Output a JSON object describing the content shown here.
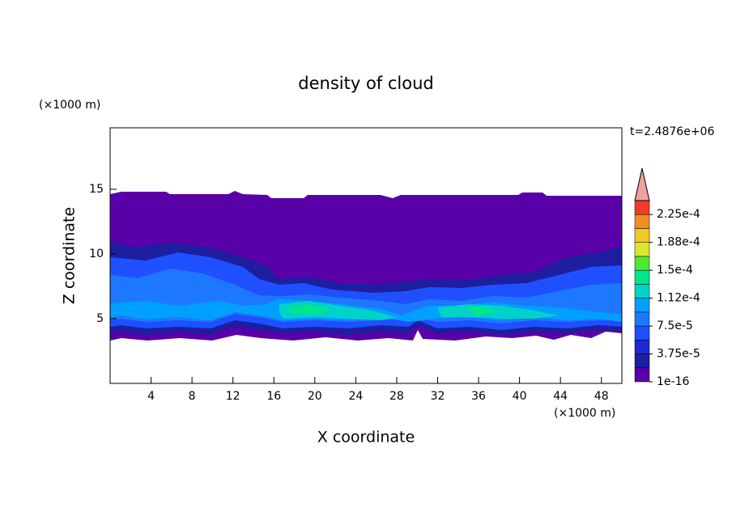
{
  "chart_data": {
    "type": "contour",
    "title": "density of cloud",
    "x_label": "X coordinate",
    "y_label": "Z coordinate",
    "x_unit": "(×1000 m)",
    "y_unit": "(×1000 m)",
    "time_label": "t=2.4876e+06",
    "xlim": [
      0,
      50
    ],
    "xticks": [
      4,
      8,
      12,
      16,
      20,
      24,
      28,
      32,
      36,
      40,
      44,
      48
    ],
    "ylim": [
      0,
      19.75
    ],
    "yticks": [
      5,
      10,
      15
    ],
    "colorbar": {
      "clim": [
        1e-16,
        0.00024375
      ],
      "colors": [
        "#5a00a8",
        "#1e1ea0",
        "#1e28d2",
        "#1e50ff",
        "#1e78ff",
        "#00a0ff",
        "#00d2c8",
        "#00e68c",
        "#50e632",
        "#dce632",
        "#f0c828",
        "#f08c28",
        "#f03c28"
      ],
      "extend_color": "#f0a0a0",
      "ticks": [
        {
          "value": 1e-16,
          "label": "1e-16"
        },
        {
          "value": 3.75e-05,
          "label": "3.75e-5"
        },
        {
          "value": 7.5e-05,
          "label": "7.5e-5"
        },
        {
          "value": 0.0001125,
          "label": "1.12e-4"
        },
        {
          "value": 0.00015,
          "label": "1.5e-4"
        },
        {
          "value": 0.0001875,
          "label": "1.88e-4"
        },
        {
          "value": 0.000225,
          "label": "2.25e-4"
        }
      ]
    }
  }
}
